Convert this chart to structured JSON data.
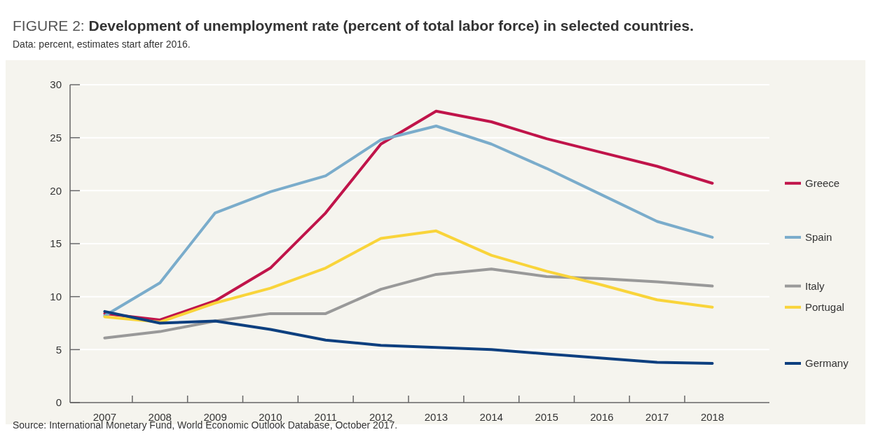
{
  "chart_data": {
    "type": "line",
    "title": "FIGURE 2: Development of unemployment rate (percent of total labor force) in selected countries.",
    "subtitle": "Data: percent, estimates start after 2016.",
    "annotations": [
      "Source: International Monetary Fund, World Economic Outlook Database, October 2017."
    ],
    "categories": [
      "2007",
      "2008",
      "2009",
      "2010",
      "2011",
      "2012",
      "2013",
      "2014",
      "2015",
      "2016",
      "2017",
      "2018"
    ],
    "series": [
      {
        "name": "Greece",
        "color": "#c0144a",
        "values": [
          8.4,
          7.8,
          9.6,
          12.7,
          17.9,
          24.4,
          27.5,
          26.5,
          24.9,
          23.6,
          22.3,
          20.7
        ]
      },
      {
        "name": "Spain",
        "color": "#7aaccb",
        "values": [
          8.2,
          11.3,
          17.9,
          19.9,
          21.4,
          24.8,
          26.1,
          24.4,
          22.1,
          19.6,
          17.1,
          15.6
        ]
      },
      {
        "name": "Italy",
        "color": "#999999",
        "values": [
          6.1,
          6.7,
          7.7,
          8.4,
          8.4,
          10.7,
          12.1,
          12.6,
          11.9,
          11.7,
          11.4,
          11.0
        ]
      },
      {
        "name": "Portugal",
        "color": "#f9d43a",
        "values": [
          8.1,
          7.6,
          9.4,
          10.8,
          12.7,
          15.5,
          16.2,
          13.9,
          12.4,
          11.1,
          9.7,
          9.0
        ]
      },
      {
        "name": "Germany",
        "color": "#0d3f7f",
        "values": [
          8.6,
          7.5,
          7.7,
          6.9,
          5.9,
          5.4,
          5.2,
          5.0,
          4.6,
          4.2,
          3.8,
          3.7
        ]
      }
    ],
    "ylim": [
      0,
      30
    ],
    "yticks": [
      0,
      5,
      10,
      15,
      20,
      25,
      30
    ],
    "grid": "y",
    "legend": "right"
  }
}
